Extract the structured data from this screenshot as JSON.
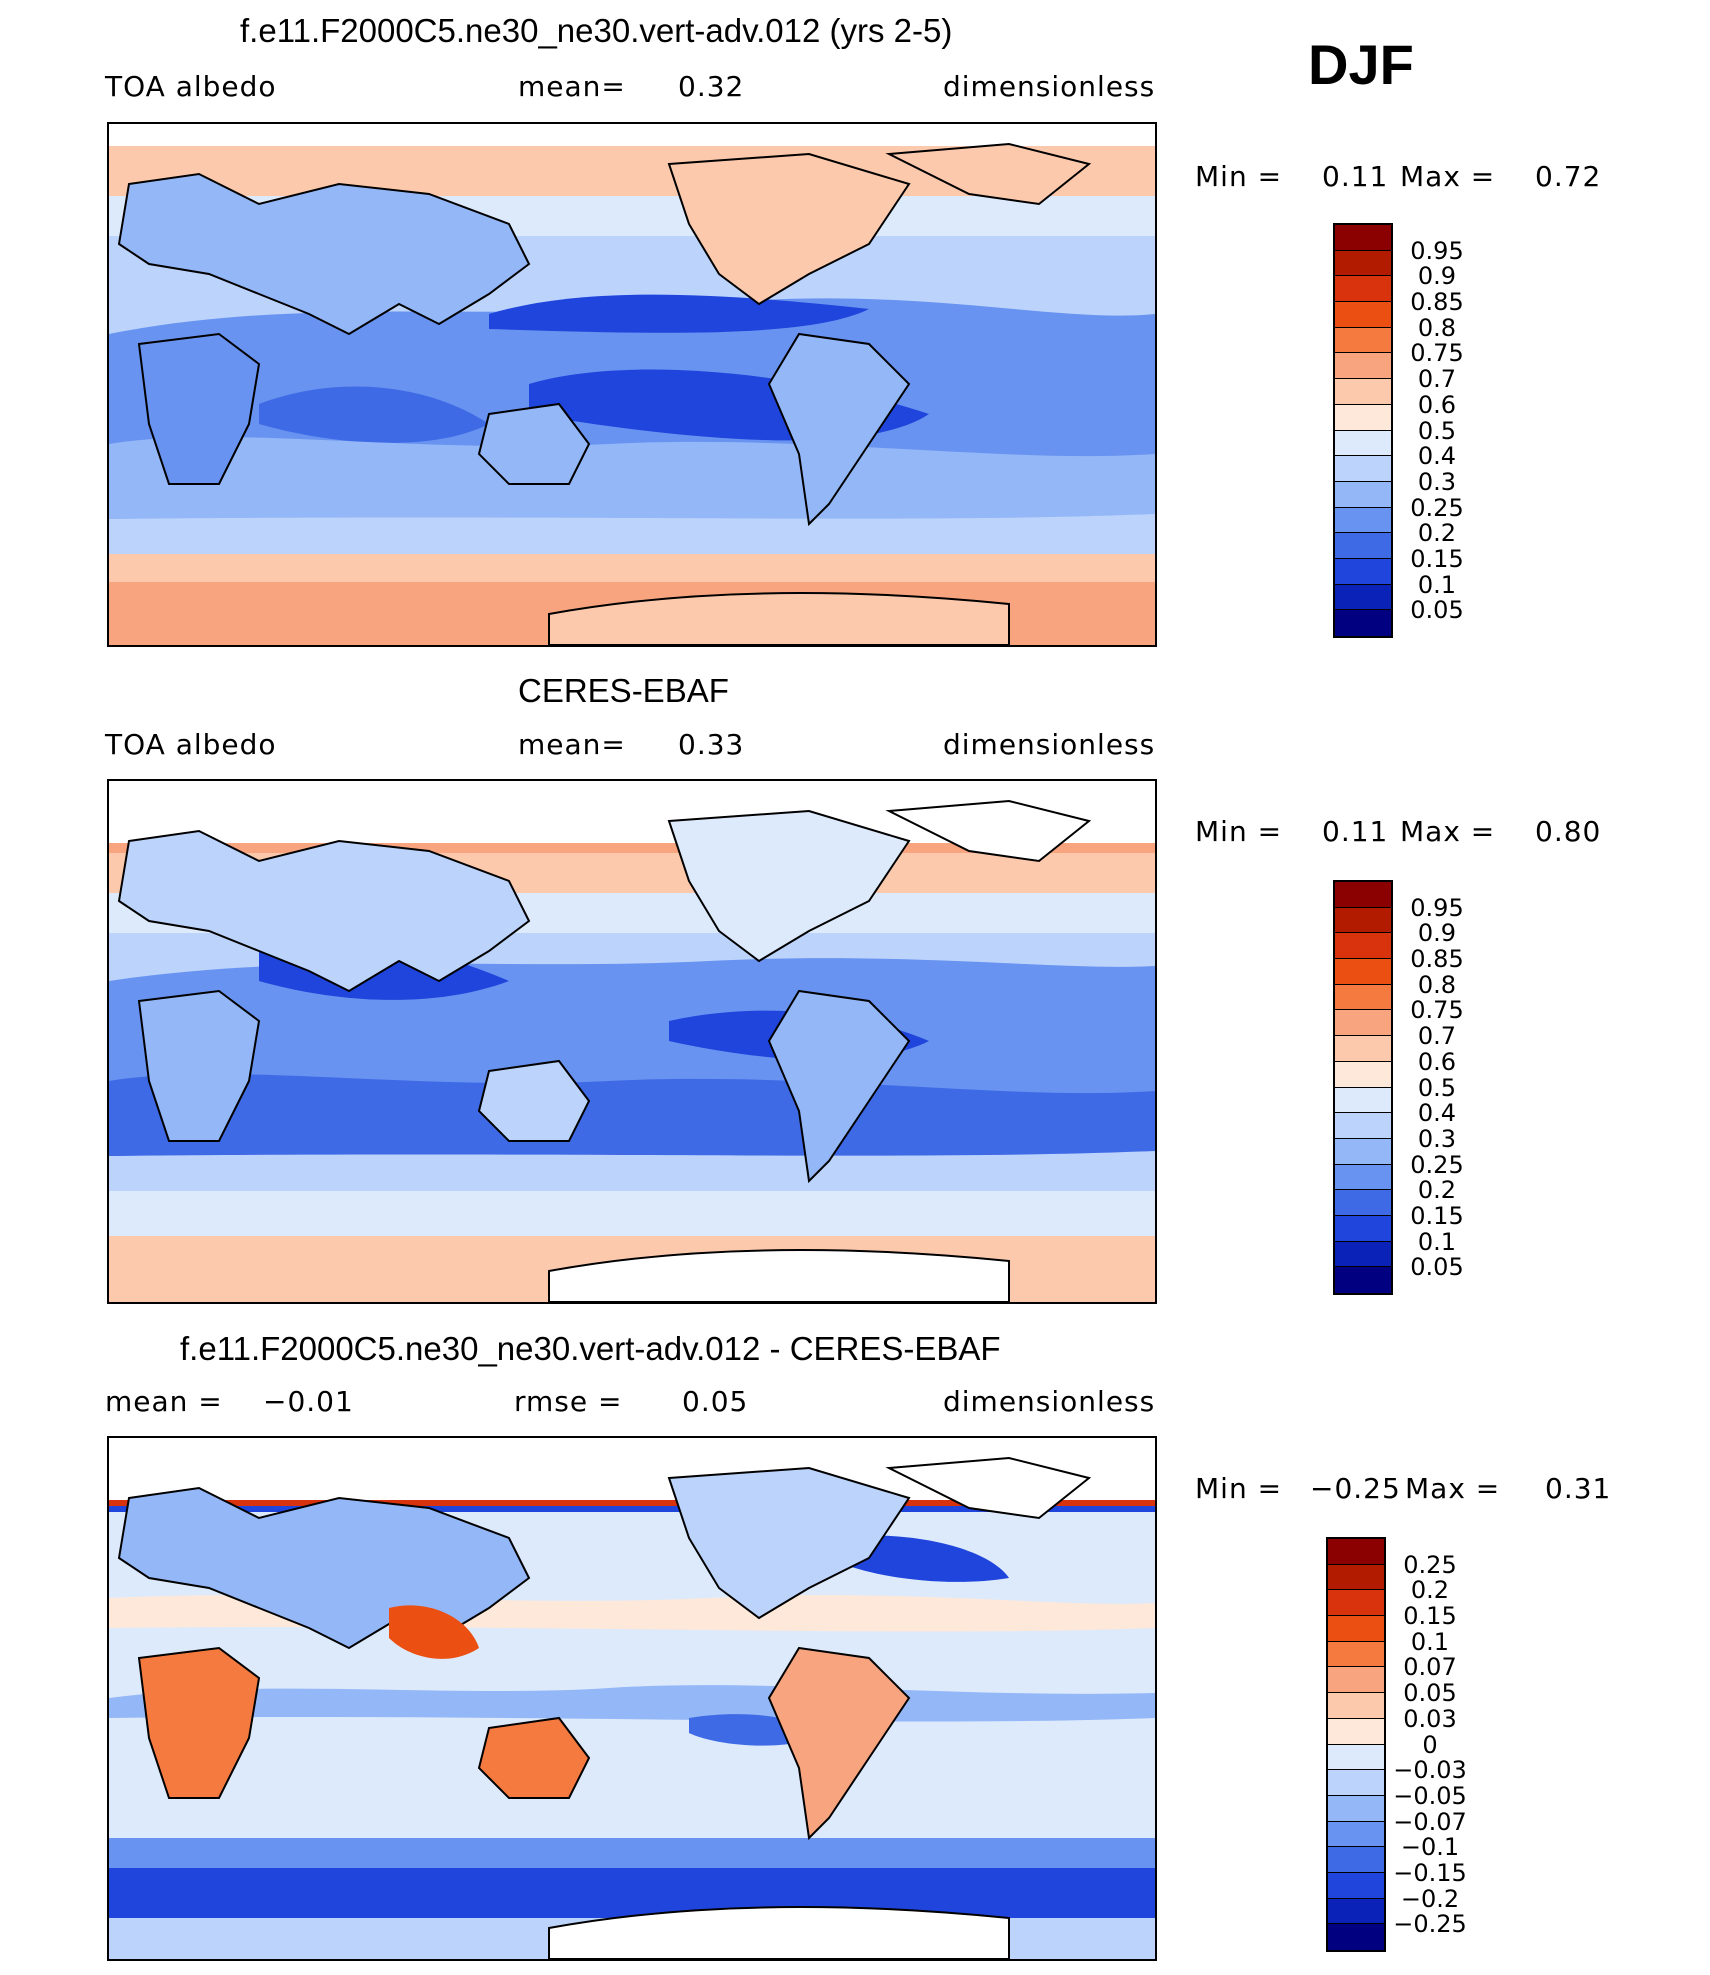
{
  "season": "DJF",
  "panels": [
    {
      "title": "f.e11.F2000C5.ne30_ne30.vert-adv.012 (yrs 2-5)",
      "left_label": "TOA albedo",
      "center_label": "mean=",
      "center_value": "0.32",
      "right_label": "dimensionless",
      "min_label": "Min =",
      "min_value": "0.11",
      "max_label": "Max =",
      "max_value": "0.72",
      "colorbar_ticks": [
        "0.95",
        "0.9",
        "0.85",
        "0.8",
        "0.75",
        "0.7",
        "0.6",
        "0.5",
        "0.4",
        "0.3",
        "0.25",
        "0.2",
        "0.15",
        "0.1",
        "0.05"
      ]
    },
    {
      "title": "CERES-EBAF",
      "left_label": "TOA albedo",
      "center_label": "mean=",
      "center_value": "0.33",
      "right_label": "dimensionless",
      "min_label": "Min =",
      "min_value": "0.11",
      "max_label": "Max =",
      "max_value": "0.80",
      "colorbar_ticks": [
        "0.95",
        "0.9",
        "0.85",
        "0.8",
        "0.75",
        "0.7",
        "0.6",
        "0.5",
        "0.4",
        "0.3",
        "0.25",
        "0.2",
        "0.15",
        "0.1",
        "0.05"
      ]
    },
    {
      "title": "f.e11.F2000C5.ne30_ne30.vert-adv.012 - CERES-EBAF",
      "left_label": "mean =",
      "left_value": "−0.01",
      "center_label": "rmse =",
      "center_value": "0.05",
      "right_label": "dimensionless",
      "min_label": "Min =",
      "min_value": "−0.25",
      "max_label": "Max =",
      "max_value": "0.31",
      "colorbar_ticks": [
        "0.25",
        "0.2",
        "0.15",
        "0.1",
        "0.07",
        "0.05",
        "0.03",
        "0",
        "−0.03",
        "−0.05",
        "−0.07",
        "−0.1",
        "−0.15",
        "−0.2",
        "−0.25"
      ]
    }
  ],
  "colors": {
    "scale": [
      "#8b0000",
      "#b31b00",
      "#d8330c",
      "#ec4f12",
      "#f57a40",
      "#f8a47f",
      "#fcc9ad",
      "#fde8da",
      "#ddeafc",
      "#bcd3fb",
      "#94b7f7",
      "#6893f0",
      "#3e6ae6",
      "#1f45dc",
      "#0b22b8",
      "#000080"
    ],
    "ocean_base": "#bcd3fb",
    "land_outline": "#000000"
  }
}
